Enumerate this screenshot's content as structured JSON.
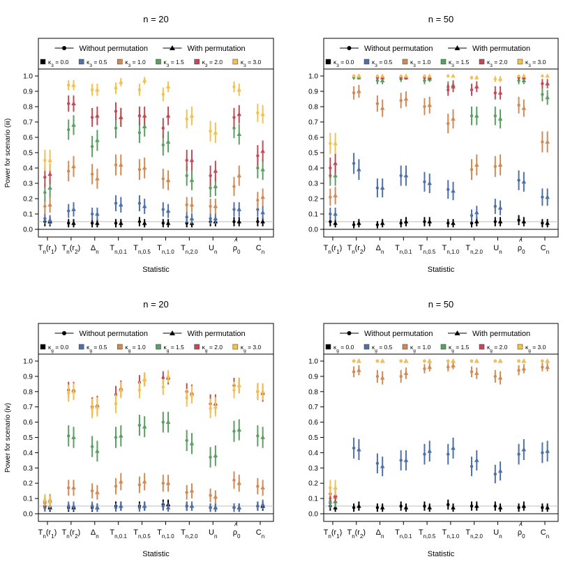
{
  "figure": {
    "legend_shape_labels": [
      "Without permutation",
      "With permutation"
    ],
    "reference_line": 0.05,
    "colors": {
      "k0": "#000000",
      "k05": "#4f6fa8",
      "k10": "#d18a55",
      "k15": "#5a9e62",
      "k20": "#c04a55",
      "k30": "#f2c14e",
      "refline": "#bdbdbd"
    }
  },
  "chart_data": [
    {
      "type": "scatter",
      "title": "n = 20",
      "xlabel": "Statistic",
      "ylabel": "Power for scenario (iii)",
      "ylim": [
        0,
        1
      ],
      "yticks": [
        "0.0",
        "0.1",
        "0.2",
        "0.3",
        "0.4",
        "0.5",
        "0.6",
        "0.7",
        "0.8",
        "0.9",
        "1.0"
      ],
      "categories": [
        "Tn(r1)",
        "Tn(r2)",
        "Δn",
        "Tn,0.1",
        "Tn,0.5",
        "Tn,1.0",
        "Tn,2.0",
        "Un",
        "ρ̂0",
        "Cn"
      ],
      "legend": [
        "κ3 = 0.0",
        "κ3 = 0.5",
        "κ3 = 1.0",
        "κ3 = 1.5",
        "κ3 = 2.0",
        "κ3 = 3.0"
      ],
      "series": [
        {
          "name": "κ3 = 0.0",
          "without": [
            0.05,
            0.04,
            0.04,
            0.04,
            0.05,
            0.04,
            0.04,
            0.05,
            0.05,
            0.05
          ],
          "with": [
            0.05,
            0.04,
            0.04,
            0.04,
            0.04,
            0.04,
            0.04,
            0.05,
            0.05,
            0.05
          ]
        },
        {
          "name": "κ3 = 0.5",
          "without": [
            0.07,
            0.12,
            0.1,
            0.17,
            0.17,
            0.13,
            0.08,
            0.07,
            0.13,
            0.13
          ],
          "with": [
            0.06,
            0.13,
            0.1,
            0.16,
            0.15,
            0.12,
            0.07,
            0.07,
            0.13,
            0.11
          ]
        },
        {
          "name": "κ3 = 1.0",
          "without": [
            0.15,
            0.38,
            0.36,
            0.42,
            0.39,
            0.33,
            0.16,
            0.15,
            0.28,
            0.19
          ],
          "with": [
            0.16,
            0.41,
            0.33,
            0.42,
            0.4,
            0.32,
            0.16,
            0.15,
            0.35,
            0.21
          ]
        },
        {
          "name": "κ3 = 1.5",
          "without": [
            0.24,
            0.65,
            0.54,
            0.66,
            0.63,
            0.55,
            0.35,
            0.27,
            0.66,
            0.4
          ],
          "with": [
            0.27,
            0.68,
            0.58,
            0.73,
            0.67,
            0.57,
            0.32,
            0.28,
            0.62,
            0.39
          ]
        },
        {
          "name": "κ3 = 2.0",
          "without": [
            0.34,
            0.82,
            0.73,
            0.77,
            0.74,
            0.66,
            0.45,
            0.35,
            0.73,
            0.48
          ],
          "with": [
            0.36,
            0.82,
            0.74,
            0.73,
            0.74,
            0.74,
            0.45,
            0.38,
            0.75,
            0.51
          ]
        },
        {
          "name": "κ3 = 3.0",
          "without": [
            0.45,
            0.94,
            0.91,
            0.92,
            0.91,
            0.88,
            0.72,
            0.64,
            0.93,
            0.76
          ],
          "with": [
            0.45,
            0.94,
            0.91,
            0.96,
            0.97,
            0.93,
            0.74,
            0.63,
            0.91,
            0.75
          ]
        }
      ]
    },
    {
      "type": "scatter",
      "title": "n = 50",
      "xlabel": "Statistic",
      "ylabel": "",
      "ylim": [
        0,
        1
      ],
      "yticks": [
        "0.0",
        "0.1",
        "0.2",
        "0.3",
        "0.4",
        "0.5",
        "0.6",
        "0.7",
        "0.8",
        "0.9",
        "1.0"
      ],
      "categories": [
        "Tn(r1)",
        "Tn(r2)",
        "Δn",
        "Tn,0.1",
        "Tn,0.5",
        "Tn,1.0",
        "Tn,2.0",
        "Un",
        "ρ̂0",
        "Cn"
      ],
      "legend": [
        "κ3 = 0.0",
        "κ3 = 0.5",
        "κ3 = 1.0",
        "κ3 = 1.5",
        "κ3 = 2.0",
        "κ3 = 3.0"
      ],
      "series": [
        {
          "name": "κ3 = 0.0",
          "without": [
            0.05,
            0.03,
            0.03,
            0.04,
            0.05,
            0.04,
            0.04,
            0.05,
            0.06,
            0.04
          ],
          "with": [
            0.04,
            0.04,
            0.04,
            0.05,
            0.05,
            0.04,
            0.05,
            0.05,
            0.05,
            0.04
          ]
        },
        {
          "name": "κ3 = 0.5",
          "without": [
            0.1,
            0.43,
            0.27,
            0.35,
            0.31,
            0.26,
            0.09,
            0.15,
            0.32,
            0.21
          ],
          "with": [
            0.1,
            0.39,
            0.27,
            0.35,
            0.3,
            0.25,
            0.11,
            0.14,
            0.31,
            0.21
          ]
        },
        {
          "name": "κ3 = 1.0",
          "without": [
            0.21,
            0.89,
            0.82,
            0.84,
            0.8,
            0.69,
            0.39,
            0.41,
            0.81,
            0.57
          ],
          "with": [
            0.22,
            0.9,
            0.79,
            0.85,
            0.81,
            0.72,
            0.42,
            0.42,
            0.79,
            0.57
          ]
        },
        {
          "name": "κ3 = 1.5",
          "without": [
            0.35,
            0.99,
            0.97,
            0.98,
            0.97,
            0.93,
            0.74,
            0.74,
            0.97,
            0.88
          ],
          "with": [
            0.35,
            0.99,
            0.97,
            0.99,
            0.98,
            0.94,
            0.74,
            0.72,
            0.97,
            0.86
          ]
        },
        {
          "name": "κ3 = 2.0",
          "without": [
            0.4,
            1.0,
            0.99,
            0.99,
            0.99,
            0.91,
            0.91,
            0.89,
            0.99,
            0.95
          ],
          "with": [
            0.43,
            1.0,
            0.99,
            0.99,
            0.99,
            0.93,
            0.93,
            0.89,
            0.99,
            0.95
          ]
        },
        {
          "name": "κ3 = 3.0",
          "without": [
            0.56,
            1.0,
            1.0,
            1.0,
            1.0,
            1.0,
            0.99,
            0.98,
            1.0,
            1.0
          ],
          "with": [
            0.56,
            1.0,
            1.0,
            1.0,
            1.0,
            1.0,
            0.99,
            0.98,
            1.0,
            1.0
          ]
        }
      ]
    },
    {
      "type": "scatter",
      "title": "n = 20",
      "xlabel": "Statistic",
      "ylabel": "Power for scenario (iv)",
      "ylim": [
        0,
        1
      ],
      "yticks": [
        "0.0",
        "0.1",
        "0.2",
        "0.3",
        "0.4",
        "0.5",
        "0.6",
        "0.7",
        "0.8",
        "0.9",
        "1.0"
      ],
      "categories": [
        "Tn(r1)",
        "Tn(r2)",
        "Δn",
        "Tn,0.1",
        "Tn,0.5",
        "Tn,1.0",
        "Tn,2.0",
        "Un",
        "ρ̂0",
        "Cn"
      ],
      "legend": [
        "κg = 0.0",
        "κg = 0.5",
        "κg = 1.0",
        "κg = 1.5",
        "κg = 2.0",
        "κg = 3.0"
      ],
      "series": [
        {
          "name": "κg = 0.0",
          "without": [
            0.05,
            0.04,
            0.04,
            0.05,
            0.05,
            0.06,
            0.05,
            0.04,
            0.04,
            0.05
          ],
          "with": [
            0.04,
            0.04,
            0.04,
            0.05,
            0.05,
            0.06,
            0.05,
            0.04,
            0.04,
            0.05
          ]
        },
        {
          "name": "κg = 0.5",
          "without": [
            0.04,
            0.05,
            0.05,
            0.04,
            0.04,
            0.05,
            0.05,
            0.04,
            0.04,
            0.05
          ],
          "with": [
            0.05,
            0.05,
            0.04,
            0.05,
            0.05,
            0.04,
            0.05,
            0.04,
            0.04,
            0.06
          ]
        },
        {
          "name": "κg = 1.0",
          "without": [
            0.08,
            0.17,
            0.15,
            0.18,
            0.19,
            0.2,
            0.14,
            0.12,
            0.22,
            0.18
          ],
          "with": [
            0.09,
            0.17,
            0.14,
            0.21,
            0.21,
            0.2,
            0.15,
            0.11,
            0.2,
            0.17
          ]
        },
        {
          "name": "κg = 1.5",
          "without": [
            0.08,
            0.51,
            0.44,
            0.5,
            0.58,
            0.6,
            0.48,
            0.37,
            0.54,
            0.51
          ],
          "with": [
            0.08,
            0.5,
            0.41,
            0.51,
            0.57,
            0.6,
            0.46,
            0.38,
            0.55,
            0.5
          ]
        },
        {
          "name": "κg = 2.0",
          "without": [
            0.07,
            0.81,
            0.7,
            0.78,
            0.86,
            0.89,
            0.8,
            0.72,
            0.84,
            0.8
          ],
          "with": [
            0.08,
            0.81,
            0.71,
            0.82,
            0.88,
            0.89,
            0.79,
            0.72,
            0.84,
            0.79
          ]
        },
        {
          "name": "κg = 3.0",
          "without": [
            0.09,
            0.79,
            0.69,
            0.72,
            0.81,
            0.83,
            0.76,
            0.69,
            0.81,
            0.8
          ],
          "with": [
            0.08,
            0.8,
            0.7,
            0.81,
            0.88,
            0.9,
            0.78,
            0.7,
            0.84,
            0.8
          ]
        }
      ]
    },
    {
      "type": "scatter",
      "title": "n = 50",
      "xlabel": "Statistic",
      "ylabel": "",
      "ylim": [
        0,
        1
      ],
      "yticks": [
        "0.0",
        "0.1",
        "0.2",
        "0.3",
        "0.4",
        "0.5",
        "0.6",
        "0.7",
        "0.8",
        "0.9",
        "1.0"
      ],
      "categories": [
        "Tn(r1)",
        "Tn(r2)",
        "Δn",
        "Tn,0.1",
        "Tn,0.5",
        "Tn,1.0",
        "Tn,2.0",
        "Un",
        "ρ̂0",
        "Cn"
      ],
      "legend": [
        "κg = 0.0",
        "κg = 0.5",
        "κg = 1.0",
        "κg = 1.5",
        "κg = 2.0",
        "κg = 3.0"
      ],
      "series": [
        {
          "name": "κg = 0.0",
          "without": [
            0.05,
            0.04,
            0.04,
            0.05,
            0.05,
            0.06,
            0.05,
            0.05,
            0.04,
            0.04
          ],
          "with": [
            0.04,
            0.05,
            0.04,
            0.04,
            0.04,
            0.04,
            0.05,
            0.04,
            0.05,
            0.04
          ]
        },
        {
          "name": "κg = 0.5",
          "without": [
            0.07,
            0.43,
            0.33,
            0.35,
            0.39,
            0.39,
            0.31,
            0.26,
            0.39,
            0.4
          ],
          "with": [
            0.08,
            0.42,
            0.31,
            0.35,
            0.41,
            0.43,
            0.35,
            0.28,
            0.42,
            0.41
          ]
        },
        {
          "name": "κg = 1.0",
          "without": [
            0.1,
            0.93,
            0.9,
            0.9,
            0.95,
            0.96,
            0.93,
            0.9,
            0.94,
            0.96
          ],
          "with": [
            0.11,
            0.94,
            0.89,
            0.92,
            0.96,
            0.97,
            0.92,
            0.89,
            0.95,
            0.96
          ]
        },
        {
          "name": "κg = 1.5",
          "without": [
            0.08,
            1.0,
            1.0,
            1.0,
            1.0,
            1.0,
            1.0,
            1.0,
            1.0,
            1.0
          ],
          "with": [
            0.08,
            1.0,
            1.0,
            1.0,
            1.0,
            1.0,
            1.0,
            1.0,
            1.0,
            1.0
          ]
        },
        {
          "name": "κg = 2.0",
          "without": [
            0.13,
            1.0,
            1.0,
            1.0,
            1.0,
            1.0,
            1.0,
            1.0,
            1.0,
            1.0
          ],
          "with": [
            0.12,
            1.0,
            1.0,
            1.0,
            1.0,
            1.0,
            1.0,
            1.0,
            1.0,
            1.0
          ]
        },
        {
          "name": "κg = 3.0",
          "without": [
            0.17,
            1.0,
            1.0,
            1.0,
            1.0,
            1.0,
            1.0,
            1.0,
            1.0,
            1.0
          ],
          "with": [
            0.17,
            1.0,
            1.0,
            1.0,
            1.0,
            1.0,
            1.0,
            1.0,
            1.0,
            1.0
          ]
        }
      ]
    }
  ]
}
